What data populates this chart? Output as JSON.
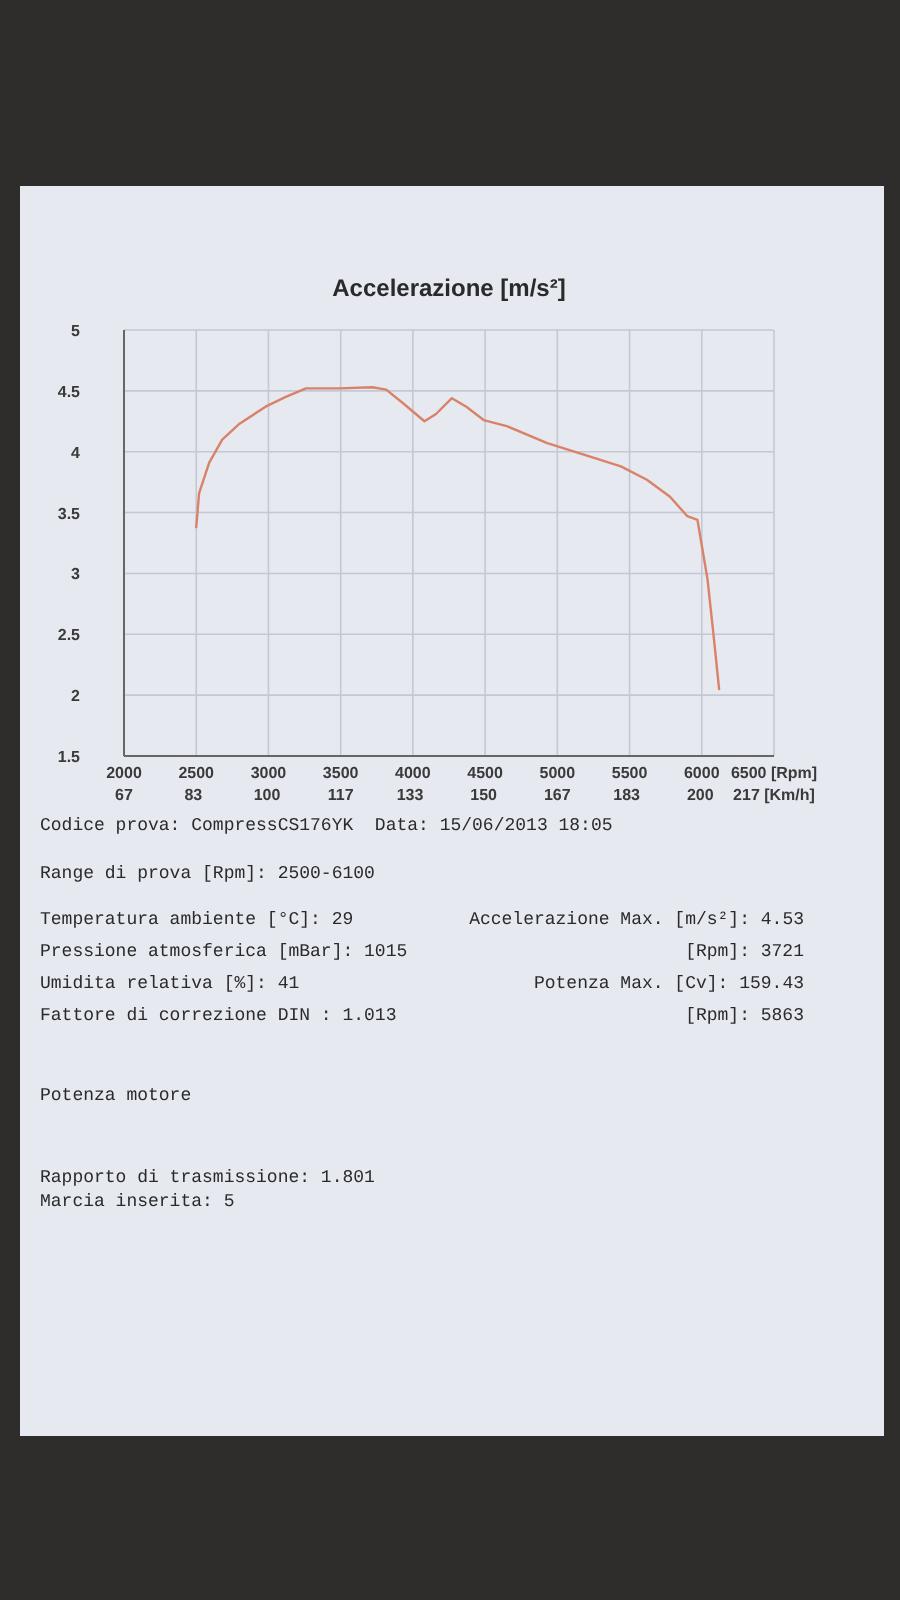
{
  "chart_data": {
    "type": "line",
    "title": "Accelerazione [m/s²]",
    "x": [
      2500,
      2520,
      2590,
      2680,
      2800,
      2980,
      3120,
      3260,
      3490,
      3720,
      3815,
      3930,
      4080,
      4160,
      4270,
      4370,
      4490,
      4650,
      4930,
      5200,
      5440,
      5620,
      5780,
      5900,
      5970,
      6040,
      6080,
      6120
    ],
    "series": [
      {
        "color": "#d9826a",
        "values": [
          3.38,
          3.66,
          3.91,
          4.1,
          4.23,
          4.37,
          4.45,
          4.52,
          4.52,
          4.53,
          4.51,
          4.4,
          4.25,
          4.31,
          4.44,
          4.37,
          4.26,
          4.21,
          4.07,
          3.97,
          3.88,
          3.77,
          3.63,
          3.47,
          3.44,
          2.95,
          2.51,
          2.05
        ]
      }
    ],
    "xlim": [
      2000,
      6500
    ],
    "xticks": [
      2000,
      2500,
      3000,
      3500,
      4000,
      4500,
      5000,
      5500,
      6000,
      {
        "value": 6500,
        "label": "6500 [Rpm]"
      }
    ],
    "x2lim": [
      67,
      217
    ],
    "x2ticks": [
      67,
      83,
      100,
      117,
      133,
      150,
      167,
      183,
      200,
      {
        "value": 217,
        "label": "217 [Km/h]"
      }
    ],
    "ylim": [
      1.5,
      5
    ],
    "yticks": [
      1.5,
      2,
      2.5,
      3,
      3.5,
      4,
      4.5,
      5
    ],
    "grid": true,
    "marker": "none",
    "line_style": "solid",
    "annotations": [
      "Codice prova: CompressCS176YK  Data: 15/06/2013 18:05",
      "Range di prova [Rpm]: 2500-6100",
      "Temperatura ambiente [°C]: 29",
      "Pressione atmosferica [mBar]: 1015",
      "Umidita relativa [%]: 41",
      "Fattore di correzione DIN : 1.013",
      "Accelerazione Max. [m/s²]: 4.53",
      "[Rpm]: 3721",
      "Potenza Max. [Cv]: 159.43",
      "[Rpm]: 5863",
      "Potenza motore",
      "Rapporto di trasmissione: 1.801",
      "Marcia inserita: 5"
    ]
  }
}
